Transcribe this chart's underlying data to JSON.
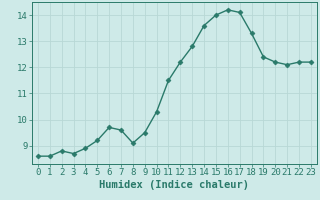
{
  "x": [
    0,
    1,
    2,
    3,
    4,
    5,
    6,
    7,
    8,
    9,
    10,
    11,
    12,
    13,
    14,
    15,
    16,
    17,
    18,
    19,
    20,
    21,
    22,
    23
  ],
  "y": [
    8.6,
    8.6,
    8.8,
    8.7,
    8.9,
    9.2,
    9.7,
    9.6,
    9.1,
    9.5,
    10.3,
    11.5,
    12.2,
    12.8,
    13.6,
    14.0,
    14.2,
    14.1,
    13.3,
    12.4,
    12.2,
    12.1,
    12.2,
    12.2
  ],
  "xlabel": "Humidex (Indice chaleur)",
  "ylim": [
    8.3,
    14.5
  ],
  "xlim": [
    -0.5,
    23.5
  ],
  "yticks": [
    9,
    10,
    11,
    12,
    13,
    14
  ],
  "xticks": [
    0,
    1,
    2,
    3,
    4,
    5,
    6,
    7,
    8,
    9,
    10,
    11,
    12,
    13,
    14,
    15,
    16,
    17,
    18,
    19,
    20,
    21,
    22,
    23
  ],
  "line_color": "#2a7a6a",
  "marker": "D",
  "marker_size": 2.5,
  "bg_color": "#ceeae8",
  "grid_color": "#b8d8d5",
  "xlabel_fontsize": 7.5,
  "tick_fontsize": 6.5,
  "linewidth": 1.0
}
